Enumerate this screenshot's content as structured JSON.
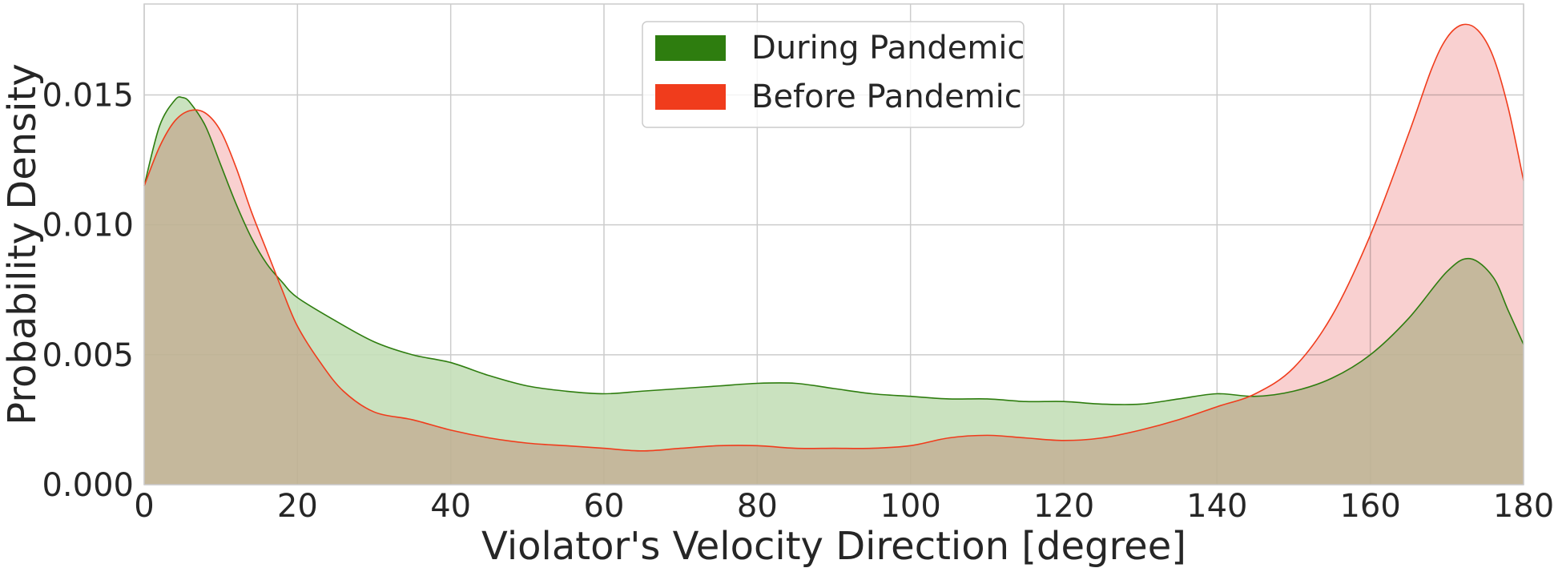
{
  "chart_data": {
    "type": "area",
    "title": "",
    "xlabel": "Violator's Velocity Direction [degree]",
    "ylabel": "Probability Density",
    "xlim": [
      0,
      180
    ],
    "ylim": [
      0,
      0.0185
    ],
    "xticks": [
      0,
      20,
      40,
      60,
      80,
      100,
      120,
      140,
      160,
      180
    ],
    "yticks": [
      0.0,
      0.005,
      0.01,
      0.015
    ],
    "xtick_labels": [
      "0",
      "20",
      "40",
      "60",
      "80",
      "100",
      "120",
      "140",
      "160",
      "180"
    ],
    "ytick_labels": [
      "0.000",
      "0.005",
      "0.010",
      "0.015"
    ],
    "grid": true,
    "legend_position": "top-center",
    "series": [
      {
        "name": "During Pandemic",
        "color": "#2e7d0f",
        "fill": "#c4dfb8",
        "x": [
          0,
          2,
          4,
          5,
          6,
          8,
          10,
          12,
          14,
          16,
          18,
          20,
          25,
          30,
          35,
          40,
          45,
          50,
          55,
          60,
          65,
          70,
          75,
          80,
          85,
          90,
          95,
          100,
          105,
          110,
          115,
          120,
          125,
          130,
          135,
          140,
          145,
          150,
          155,
          160,
          165,
          170,
          173,
          176,
          178,
          180
        ],
        "values": [
          0.0115,
          0.0138,
          0.0148,
          0.0149,
          0.0147,
          0.0138,
          0.0123,
          0.0108,
          0.0095,
          0.0085,
          0.0078,
          0.0072,
          0.0063,
          0.0055,
          0.005,
          0.0047,
          0.0042,
          0.0038,
          0.0036,
          0.0035,
          0.0036,
          0.0037,
          0.0038,
          0.0039,
          0.0039,
          0.0037,
          0.0035,
          0.0034,
          0.0033,
          0.0033,
          0.0032,
          0.0032,
          0.0031,
          0.0031,
          0.0033,
          0.0035,
          0.0034,
          0.0036,
          0.0041,
          0.005,
          0.0064,
          0.0082,
          0.0087,
          0.008,
          0.0067,
          0.0054
        ]
      },
      {
        "name": "Before Pandemic",
        "color": "#f03c1c",
        "fill": "#f7c0c0",
        "x": [
          0,
          2,
          4,
          6,
          8,
          10,
          12,
          14,
          16,
          18,
          20,
          23,
          26,
          30,
          35,
          40,
          45,
          50,
          55,
          60,
          65,
          70,
          75,
          80,
          85,
          90,
          95,
          100,
          105,
          110,
          115,
          120,
          125,
          130,
          135,
          140,
          145,
          150,
          155,
          160,
          165,
          168,
          170,
          172,
          174,
          176,
          178,
          180
        ],
        "values": [
          0.0115,
          0.013,
          0.014,
          0.0144,
          0.0143,
          0.0136,
          0.0122,
          0.0105,
          0.009,
          0.0075,
          0.0061,
          0.0047,
          0.0036,
          0.0028,
          0.0025,
          0.0021,
          0.0018,
          0.0016,
          0.0015,
          0.0014,
          0.0013,
          0.0014,
          0.0015,
          0.0015,
          0.0014,
          0.0014,
          0.0014,
          0.0015,
          0.0018,
          0.0019,
          0.0018,
          0.0017,
          0.0018,
          0.0021,
          0.0025,
          0.003,
          0.0035,
          0.0045,
          0.0065,
          0.0096,
          0.0135,
          0.016,
          0.0172,
          0.0177,
          0.0175,
          0.0165,
          0.0145,
          0.0117
        ]
      }
    ]
  }
}
